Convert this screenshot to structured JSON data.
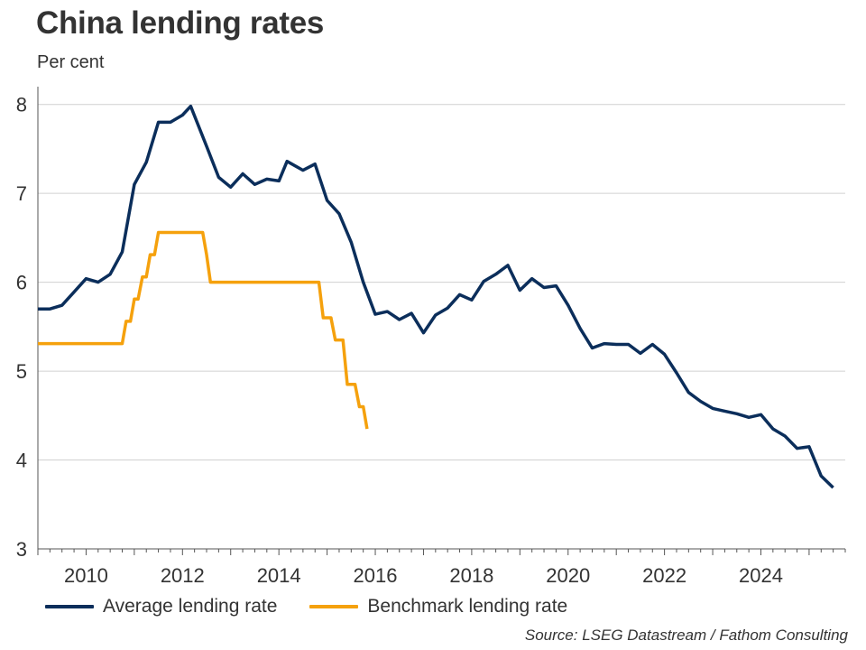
{
  "header": {
    "title": "China lending rates",
    "subtitle": "Per cent"
  },
  "source": "Source: LSEG Datastream / Fathom Consulting",
  "colors": {
    "average": "#0b2e5b",
    "benchmark": "#f5a10d",
    "grid": "#d0d0d0",
    "axis": "#555555"
  },
  "chart_data": {
    "type": "line",
    "title": "China lending rates",
    "ylabel": "Per cent",
    "xlim": [
      2009.0,
      2025.75
    ],
    "ylim": [
      3,
      8
    ],
    "yticks": [
      3,
      4,
      5,
      6,
      7,
      8
    ],
    "xticks": [
      2010,
      2012,
      2014,
      2016,
      2018,
      2020,
      2022,
      2024
    ],
    "grid": "horizontal",
    "legend": "bottom",
    "series": [
      {
        "name": "Average lending rate",
        "color": "#0b2e5b",
        "x": [
          2009.0,
          2009.25,
          2009.5,
          2009.75,
          2010.0,
          2010.25,
          2010.5,
          2010.75,
          2011.0,
          2011.25,
          2011.5,
          2011.75,
          2012.0,
          2012.17,
          2012.5,
          2012.75,
          2013.0,
          2013.25,
          2013.5,
          2013.75,
          2014.0,
          2014.17,
          2014.5,
          2014.75,
          2015.0,
          2015.25,
          2015.5,
          2015.75,
          2016.0,
          2016.25,
          2016.5,
          2016.75,
          2017.0,
          2017.25,
          2017.5,
          2017.75,
          2018.0,
          2018.25,
          2018.5,
          2018.75,
          2019.0,
          2019.25,
          2019.5,
          2019.75,
          2020.0,
          2020.25,
          2020.5,
          2020.75,
          2021.0,
          2021.25,
          2021.5,
          2021.75,
          2022.0,
          2022.25,
          2022.5,
          2022.75,
          2023.0,
          2023.25,
          2023.5,
          2023.75,
          2024.0,
          2024.25,
          2024.5,
          2024.75,
          2025.0,
          2025.25,
          2025.5
        ],
        "values": [
          5.7,
          5.7,
          5.74,
          5.89,
          6.04,
          6.0,
          6.09,
          6.34,
          7.1,
          7.35,
          7.8,
          7.8,
          7.88,
          7.98,
          7.53,
          7.18,
          7.07,
          7.22,
          7.1,
          7.16,
          7.14,
          7.36,
          7.26,
          7.33,
          6.92,
          6.77,
          6.45,
          6.0,
          5.64,
          5.67,
          5.58,
          5.65,
          5.43,
          5.63,
          5.71,
          5.86,
          5.8,
          6.01,
          6.09,
          6.19,
          5.91,
          6.04,
          5.94,
          5.96,
          5.74,
          5.48,
          5.26,
          5.31,
          5.3,
          5.3,
          5.2,
          5.3,
          5.19,
          4.98,
          4.76,
          4.66,
          4.58,
          4.55,
          4.52,
          4.48,
          4.51,
          4.35,
          4.27,
          4.13,
          4.15,
          3.82,
          3.69
        ]
      },
      {
        "name": "Benchmark lending rate",
        "color": "#f5a10d",
        "x": [
          2009.0,
          2010.75,
          2010.83,
          2010.92,
          2011.0,
          2011.08,
          2011.17,
          2011.25,
          2011.33,
          2011.42,
          2011.5,
          2011.58,
          2011.67,
          2012.42,
          2012.5,
          2012.58,
          2014.83,
          2014.92,
          2015.08,
          2015.17,
          2015.33,
          2015.42,
          2015.58,
          2015.67,
          2015.75,
          2015.83
        ],
        "values": [
          5.31,
          5.31,
          5.56,
          5.56,
          5.81,
          5.81,
          6.06,
          6.06,
          6.31,
          6.31,
          6.56,
          6.56,
          6.56,
          6.56,
          6.31,
          6.0,
          6.0,
          5.6,
          5.6,
          5.35,
          5.35,
          4.85,
          4.85,
          4.6,
          4.6,
          4.35
        ]
      }
    ]
  }
}
